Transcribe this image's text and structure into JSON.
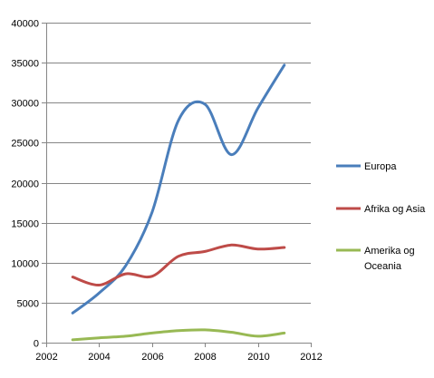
{
  "chart_data": {
    "type": "line",
    "title": "",
    "xlabel": "",
    "ylabel": "",
    "xlim": [
      2002,
      2012
    ],
    "ylim": [
      0,
      40000
    ],
    "x_ticks": [
      2002,
      2004,
      2006,
      2008,
      2010,
      2012
    ],
    "y_ticks": [
      0,
      5000,
      10000,
      15000,
      20000,
      25000,
      30000,
      35000,
      40000
    ],
    "grid": "horizontal",
    "legend_position": "right",
    "x": [
      2003,
      2004,
      2005,
      2006,
      2007,
      2008,
      2009,
      2010,
      2011
    ],
    "series": [
      {
        "name": "Europa",
        "color": "#4a7ebb",
        "values": [
          3700,
          6200,
          9600,
          16300,
          27800,
          29800,
          23500,
          29300,
          34700
        ]
      },
      {
        "name": "Afrika og Asia",
        "color": "#be4b48",
        "values": [
          8200,
          7200,
          8600,
          8300,
          10800,
          11400,
          12200,
          11700,
          11900
        ]
      },
      {
        "name": "Amerika og\nOceania",
        "color": "#98b954",
        "values": [
          350,
          600,
          800,
          1200,
          1500,
          1600,
          1300,
          800,
          1200
        ]
      }
    ]
  }
}
